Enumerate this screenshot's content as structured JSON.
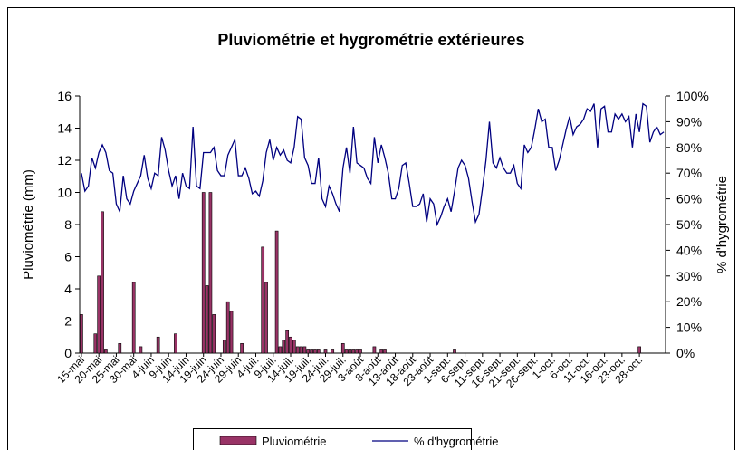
{
  "chart_data": {
    "type": "bar",
    "title": "Pluviométrie et hygrométrie extérieures",
    "ylabel": "Pluviométrie (mm)",
    "y2label": "% d'hygrométrie",
    "categories": [
      "15-mai",
      null,
      null,
      null,
      null,
      "20-mai",
      null,
      null,
      null,
      null,
      "25-mai",
      null,
      null,
      null,
      null,
      "30-mai",
      null,
      null,
      null,
      null,
      "4-juin",
      null,
      null,
      null,
      null,
      "9-juin",
      null,
      null,
      null,
      null,
      "14-juin",
      null,
      null,
      null,
      null,
      "19-juin",
      null,
      null,
      null,
      null,
      "24-juin",
      null,
      null,
      null,
      null,
      "29-juin",
      null,
      null,
      null,
      null,
      "4-juil.",
      null,
      null,
      null,
      null,
      "9-juil.",
      null,
      null,
      null,
      null,
      "14-juil.",
      null,
      null,
      null,
      null,
      "19-juil.",
      null,
      null,
      null,
      null,
      "24-juil.",
      null,
      null,
      null,
      null,
      "29-juil.",
      null,
      null,
      null,
      null,
      "3-août",
      null,
      null,
      null,
      null,
      "8-août",
      null,
      null,
      null,
      null,
      "13-août",
      null,
      null,
      null,
      null,
      "18-août",
      null,
      null,
      null,
      null,
      "23-août",
      null,
      null,
      null,
      null,
      "1-sept.",
      null,
      null,
      null,
      null,
      "6-sept.",
      null,
      null,
      null,
      null,
      "11-sept.",
      null,
      null,
      null,
      null,
      "16-sept.",
      null,
      null,
      null,
      null,
      "21-sept.",
      null,
      null,
      null,
      null,
      "26-sept.",
      null,
      null,
      null,
      null,
      "1-oct.",
      null,
      null,
      null,
      null,
      "6-oct.",
      null,
      null,
      null,
      null,
      "11-oct.",
      null,
      null,
      null,
      null,
      "16-oct.",
      null,
      null,
      null,
      null,
      "23-oct.",
      null,
      null,
      null,
      null,
      "28-oct.",
      null,
      null,
      null,
      null,
      null,
      null,
      null
    ],
    "series": [
      {
        "name": "Pluviométrie",
        "type": "bar",
        "color": "#993366",
        "values": [
          2.4,
          0,
          0,
          0,
          1.2,
          4.8,
          8.8,
          0.2,
          0,
          0,
          0,
          0.6,
          0,
          0,
          0,
          4.4,
          0,
          0.4,
          0,
          0,
          0,
          0,
          1,
          0,
          0,
          0,
          0,
          1.2,
          0,
          0,
          0,
          0,
          0,
          0,
          0,
          10,
          4.2,
          10,
          2.4,
          0,
          0,
          0.8,
          3.2,
          2.6,
          0,
          0,
          0.6,
          0,
          0,
          0,
          0,
          0,
          6.6,
          4.4,
          0,
          0,
          7.6,
          0.4,
          0.8,
          1.4,
          1,
          0.8,
          0.4,
          0.4,
          0.4,
          0.2,
          0.2,
          0.2,
          0.2,
          0,
          0.2,
          0,
          0.2,
          0,
          0,
          0.6,
          0.2,
          0.2,
          0.2,
          0.2,
          0.2,
          0,
          0,
          0,
          0.4,
          0,
          0.2,
          0.2,
          0,
          0,
          0,
          0,
          0,
          0,
          0,
          0,
          0,
          0,
          0,
          0,
          0,
          0,
          0,
          0,
          0,
          0,
          0,
          0.2,
          0,
          0,
          0,
          0,
          0,
          0,
          0,
          0,
          0,
          0,
          0,
          0,
          0,
          0,
          0,
          0,
          0,
          0,
          0,
          0,
          0,
          0,
          0,
          0,
          0,
          0,
          0,
          0,
          0,
          0,
          0,
          0,
          0,
          0,
          0,
          0,
          0,
          0,
          0,
          0,
          0,
          0,
          0,
          0,
          0,
          0,
          0,
          0,
          0,
          0,
          0,
          0,
          0.4,
          0,
          0,
          0,
          0,
          0,
          0,
          0
        ]
      },
      {
        "name": "% d'hygrométrie",
        "type": "line",
        "axis": "y2",
        "color": "#000080",
        "values": [
          70,
          63,
          65,
          76,
          72,
          78,
          81,
          78,
          71,
          70,
          58,
          55,
          69,
          60,
          58,
          63,
          66,
          69,
          77,
          68,
          64,
          70,
          69,
          84,
          79,
          71,
          65,
          69,
          60,
          70,
          65,
          64,
          88,
          65,
          64,
          78,
          78,
          78,
          80,
          71,
          69,
          69,
          77,
          80,
          83,
          69,
          69,
          72,
          68,
          62,
          63,
          61,
          67,
          78,
          83,
          75,
          80,
          77,
          79,
          75,
          74,
          80,
          92,
          91,
          76,
          73,
          66,
          66,
          76,
          60,
          57,
          65,
          62,
          58,
          55,
          72,
          80,
          70,
          88,
          74,
          73,
          72,
          68,
          66,
          84,
          74,
          81,
          76,
          70,
          60,
          60,
          64,
          73,
          74,
          66,
          57,
          57,
          58,
          62,
          51,
          60,
          58,
          50,
          53,
          57,
          60,
          55,
          63,
          72,
          75,
          73,
          68,
          59,
          51,
          54,
          64,
          75,
          90,
          74,
          72,
          76,
          72,
          70,
          70,
          73,
          66,
          64,
          81,
          78,
          80,
          87,
          95,
          90,
          91,
          80,
          80,
          71,
          75,
          81,
          87,
          92,
          85,
          88,
          89,
          91,
          95,
          94,
          97,
          80,
          95,
          96,
          86,
          86,
          93,
          91,
          93,
          90,
          92,
          80,
          93,
          86,
          97,
          96,
          82,
          86,
          88,
          85,
          86
        ]
      }
    ],
    "ylim": [
      0,
      16
    ],
    "yticks": [
      0,
      2,
      4,
      6,
      8,
      10,
      12,
      14,
      16
    ],
    "y2lim": [
      0,
      100
    ],
    "y2ticks": [
      {
        "value": 0,
        "label": "0%"
      },
      {
        "value": 10,
        "label": "10%"
      },
      {
        "value": 20,
        "label": "20%"
      },
      {
        "value": 30,
        "label": "30%"
      },
      {
        "value": 40,
        "label": "40%"
      },
      {
        "value": 50,
        "label": "50%"
      },
      {
        "value": 60,
        "label": "60%"
      },
      {
        "value": 70,
        "label": "70%"
      },
      {
        "value": 80,
        "label": "80%"
      },
      {
        "value": 90,
        "label": "90%"
      },
      {
        "value": 100,
        "label": "100%"
      }
    ],
    "grid": false,
    "legend": "bottom"
  }
}
